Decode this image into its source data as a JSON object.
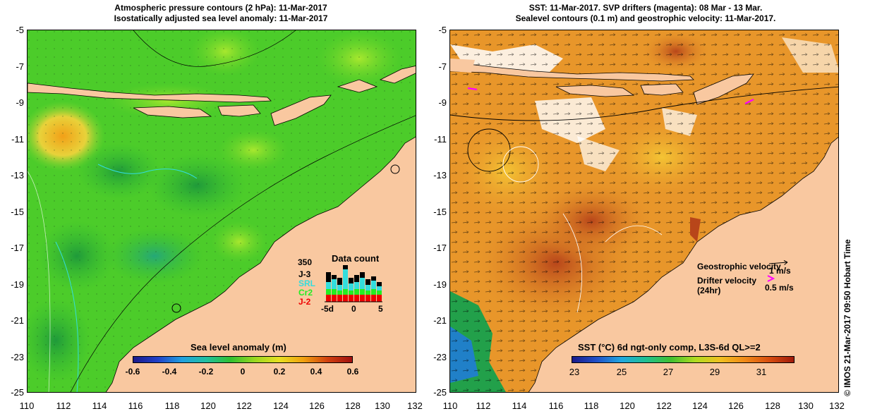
{
  "left_panel": {
    "title_line1": "Atmospheric pressure contours (2 hPa): 11-Mar-2017",
    "title_line2": "Isostatically adjusted sea level anomaly: 11-Mar-2017",
    "colorbar": {
      "title": "Sea level anomaly (m)",
      "ticks": [
        "-0.6",
        "-0.4",
        "-0.2",
        "0",
        "0.2",
        "0.4",
        "0.6"
      ]
    },
    "data_count": {
      "title": "Data count",
      "max_label": "350",
      "missions": [
        {
          "label": "J-3",
          "color": "#000000"
        },
        {
          "label": "SRL",
          "color": "#33dddd"
        },
        {
          "label": "Cr2",
          "color": "#22ee22"
        },
        {
          "label": "J-2",
          "color": "#ee0000"
        }
      ],
      "x_ticks": [
        "-5d",
        "0",
        "5"
      ]
    }
  },
  "right_panel": {
    "title_line1": "SST: 11-Mar-2017. SVP drifters (magenta): 08 Mar - 13 Mar.",
    "title_line2": "Sealevel contours (0.1 m) and geostrophic velocity: 11-Mar-2017.",
    "legend": {
      "geostrophic_label": "Geostrophic velocity",
      "geostrophic_value": "1 m/s",
      "drifter_label": "Drifter velocity",
      "drifter_sub": "(24hr)",
      "drifter_value": "0.5 m/s"
    },
    "colorbar": {
      "title": "SST (°C) 6d ngt-only comp, L3S-6d QL>=2",
      "ticks": [
        "23",
        "25",
        "27",
        "29",
        "31"
      ]
    },
    "credit": "© IMOS 21-Mar-2017 09:50 Hobart Time"
  },
  "axes": {
    "y_ticks": [
      "-5",
      "-7",
      "-9",
      "-11",
      "-13",
      "-15",
      "-17",
      "-19",
      "-21",
      "-23",
      "-25"
    ],
    "x_ticks": [
      "110",
      "112",
      "114",
      "116",
      "118",
      "120",
      "122",
      "124",
      "126",
      "128",
      "130",
      "132"
    ]
  },
  "colors": {
    "land": "#f9c8a0",
    "sla_green": "#44cc22",
    "sla_dark": "#22aa22",
    "sst_orange": "#e8962a",
    "sst_dark": "#b84a14"
  }
}
